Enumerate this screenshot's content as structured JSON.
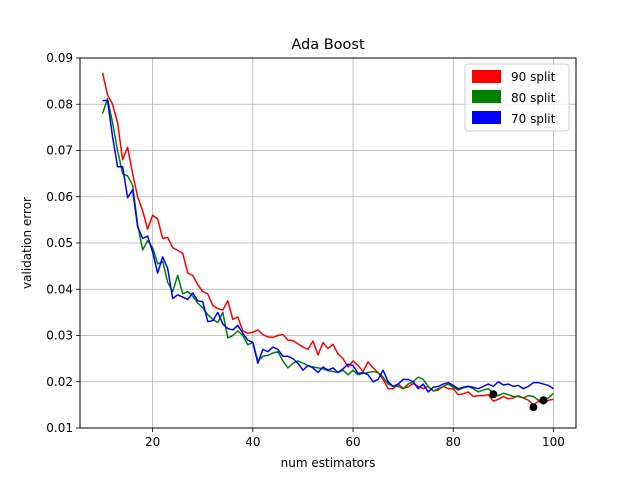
{
  "chart_data": {
    "type": "line",
    "title": "Ada Boost",
    "xlabel": "num estimators",
    "ylabel": "validation error",
    "xlim": [
      5.5,
      104.5
    ],
    "ylim": [
      0.01,
      0.09
    ],
    "xticks": [
      20,
      40,
      60,
      80,
      100
    ],
    "xtick_labels": [
      "20",
      "40",
      "60",
      "80",
      "100"
    ],
    "yticks": [
      0.01,
      0.02,
      0.03,
      0.04,
      0.05,
      0.06,
      0.07,
      0.08,
      0.09
    ],
    "ytick_labels": [
      "0.01",
      "0.02",
      "0.03",
      "0.04",
      "0.05",
      "0.06",
      "0.07",
      "0.08",
      "0.09"
    ],
    "grid": true,
    "legend_position": "top-right",
    "x": [
      10,
      11,
      12,
      13,
      14,
      15,
      16,
      17,
      18,
      19,
      20,
      21,
      22,
      23,
      24,
      25,
      26,
      27,
      28,
      29,
      30,
      31,
      32,
      33,
      34,
      35,
      36,
      37,
      38,
      39,
      40,
      41,
      42,
      43,
      44,
      45,
      46,
      47,
      48,
      49,
      50,
      51,
      52,
      53,
      54,
      55,
      56,
      57,
      58,
      59,
      60,
      61,
      62,
      63,
      64,
      65,
      66,
      67,
      68,
      69,
      70,
      71,
      72,
      73,
      74,
      75,
      76,
      77,
      78,
      79,
      80,
      81,
      82,
      83,
      84,
      85,
      86,
      87,
      88,
      89,
      90,
      91,
      92,
      93,
      94,
      95,
      96,
      97,
      98,
      99,
      100
    ],
    "series": [
      {
        "name": "90 split",
        "color": "#ff0000",
        "values": [
          0.0868,
          0.082,
          0.08,
          0.076,
          0.068,
          0.0707,
          0.065,
          0.06,
          0.057,
          0.053,
          0.056,
          0.0552,
          0.051,
          0.0512,
          0.049,
          0.0484,
          0.0478,
          0.0435,
          0.043,
          0.041,
          0.0395,
          0.039,
          0.0365,
          0.0358,
          0.0355,
          0.0375,
          0.0335,
          0.034,
          0.031,
          0.0305,
          0.0307,
          0.0312,
          0.0302,
          0.0297,
          0.0296,
          0.03,
          0.0302,
          0.029,
          0.0289,
          0.0282,
          0.0275,
          0.027,
          0.0288,
          0.0258,
          0.0285,
          0.0272,
          0.0281,
          0.026,
          0.025,
          0.0232,
          0.0245,
          0.0235,
          0.0222,
          0.0243,
          0.023,
          0.022,
          0.0205,
          0.0185,
          0.0185,
          0.0195,
          0.0186,
          0.0189,
          0.0196,
          0.019,
          0.0185,
          0.019,
          0.018,
          0.0182,
          0.019,
          0.0185,
          0.0185,
          0.0172,
          0.0174,
          0.0178,
          0.0168,
          0.017,
          0.017,
          0.0172,
          0.0158,
          0.0162,
          0.0168,
          0.0163,
          0.0165,
          0.017,
          0.0165,
          0.016,
          0.015,
          0.0158,
          0.0152,
          0.016,
          0.0162
        ],
        "markers": [
          {
            "x": 96,
            "y": 0.0145
          }
        ]
      },
      {
        "name": "80 split",
        "color": "#008000",
        "values": [
          0.078,
          0.0812,
          0.076,
          0.07,
          0.065,
          0.0645,
          0.0625,
          0.054,
          0.0485,
          0.0505,
          0.049,
          0.0455,
          0.046,
          0.0415,
          0.0395,
          0.043,
          0.039,
          0.0395,
          0.0385,
          0.037,
          0.036,
          0.0345,
          0.0335,
          0.0328,
          0.035,
          0.0295,
          0.03,
          0.031,
          0.03,
          0.028,
          0.0285,
          0.0245,
          0.0255,
          0.0257,
          0.0262,
          0.0265,
          0.0245,
          0.023,
          0.024,
          0.0245,
          0.024,
          0.0235,
          0.0232,
          0.023,
          0.0228,
          0.0224,
          0.0222,
          0.022,
          0.0225,
          0.0215,
          0.0225,
          0.0215,
          0.0218,
          0.022,
          0.0222,
          0.022,
          0.021,
          0.0195,
          0.019,
          0.019,
          0.0185,
          0.0195,
          0.02,
          0.021,
          0.0205,
          0.019,
          0.018,
          0.0185,
          0.019,
          0.0195,
          0.0188,
          0.0182,
          0.0187,
          0.019,
          0.0185,
          0.0178,
          0.0182,
          0.0185,
          0.0175,
          0.017,
          0.0175,
          0.0172,
          0.0168,
          0.0168,
          0.0165,
          0.017,
          0.0168,
          0.016,
          0.0162,
          0.0165,
          0.0175
        ],
        "markers": [
          {
            "x": 88,
            "y": 0.0173
          }
        ]
      },
      {
        "name": "70 split",
        "color": "#0000ff",
        "values": [
          0.0808,
          0.0808,
          0.073,
          0.0665,
          0.0665,
          0.0598,
          0.0615,
          0.0535,
          0.051,
          0.0515,
          0.048,
          0.0435,
          0.047,
          0.0445,
          0.038,
          0.0388,
          0.0383,
          0.0378,
          0.0392,
          0.0375,
          0.0373,
          0.033,
          0.0332,
          0.035,
          0.0325,
          0.0315,
          0.0312,
          0.0322,
          0.0305,
          0.029,
          0.0285,
          0.024,
          0.027,
          0.0265,
          0.0275,
          0.027,
          0.0255,
          0.0255,
          0.025,
          0.024,
          0.0225,
          0.0235,
          0.023,
          0.022,
          0.0232,
          0.0225,
          0.023,
          0.022,
          0.0228,
          0.0238,
          0.0235,
          0.0218,
          0.022,
          0.0215,
          0.02,
          0.0205,
          0.0225,
          0.02,
          0.019,
          0.0195,
          0.0205,
          0.0205,
          0.02,
          0.0185,
          0.0195,
          0.0178,
          0.0188,
          0.019,
          0.0195,
          0.0198,
          0.0192,
          0.0185,
          0.0188,
          0.019,
          0.0188,
          0.0185,
          0.019,
          0.0195,
          0.019,
          0.02,
          0.0193,
          0.0195,
          0.019,
          0.0192,
          0.0185,
          0.019,
          0.0198,
          0.0198,
          0.0195,
          0.0192,
          0.0185
        ],
        "markers": [
          {
            "x": 98,
            "y": 0.016
          }
        ]
      }
    ]
  }
}
